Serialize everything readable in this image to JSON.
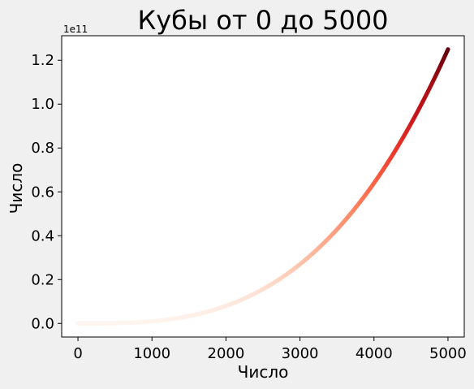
{
  "chart_data": {
    "type": "scatter",
    "title": "Кубы от 0 до 5000",
    "xlabel": "Число",
    "ylabel": "Число",
    "function": "y = x^3",
    "x_range": [
      0,
      5000
    ],
    "xlim": [
      -220,
      5220
    ],
    "ylim": [
      -0.062,
      1.312
    ],
    "y_scale_offset": "1e11",
    "xticks": [
      0,
      1000,
      2000,
      3000,
      4000,
      5000
    ],
    "xtick_labels": [
      "0",
      "1000",
      "2000",
      "3000",
      "4000",
      "5000"
    ],
    "yticks": [
      0.0,
      0.2,
      0.4,
      0.6,
      0.8,
      1.0,
      1.2
    ],
    "ytick_labels": [
      "0.0",
      "0.2",
      "0.4",
      "0.6",
      "0.8",
      "1.0",
      "1.2"
    ],
    "colormap": "Reds",
    "colormap_colors": [
      "#fff5f0",
      "#fee0d2",
      "#fcbba1",
      "#fc9272",
      "#fb6a4a",
      "#ef3b2c",
      "#cb181d",
      "#a50f15",
      "#67000d"
    ],
    "sample_points": [
      {
        "x": 0,
        "y": 0.0
      },
      {
        "x": 1000,
        "y": 0.01
      },
      {
        "x": 2000,
        "y": 0.08
      },
      {
        "x": 3000,
        "y": 0.27
      },
      {
        "x": 4000,
        "y": 0.64
      },
      {
        "x": 5000,
        "y": 1.25
      }
    ],
    "grid": false
  },
  "colors": {
    "figure_background": "#f0f0f0",
    "plot_background": "#ffffff",
    "axis": "#000000"
  }
}
